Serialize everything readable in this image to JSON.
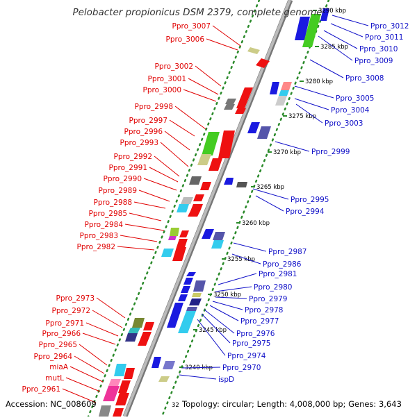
{
  "title": "Pelobacter propionicus DSM 2379, complete genome",
  "footer": {
    "accession": "Accession: NC_008609",
    "cut_kbp": "32",
    "summary": "Topology: circular; Length: 4,008,000 bp; Genes: 3,643"
  },
  "colors": {
    "forward": "#1010c8",
    "reverse": "#e00000",
    "backbone": "#999999",
    "tick_dots": "#2a8a2a"
  },
  "kbp_ticks": [
    "3290 kbp",
    "3285 kbp",
    "3280 kbp",
    "3275 kbp",
    "3270 kbp",
    "3265 kbp",
    "3260 kbp",
    "3255 kbp",
    "3250 kbp",
    "3245 kbp",
    "3240 kbp"
  ],
  "left_labels": [
    "Ppro_3007",
    "Ppro_3006",
    "Ppro_3002",
    "Ppro_3001",
    "Ppro_3000",
    "Ppro_2998",
    "Ppro_2997",
    "Ppro_2996",
    "Ppro_2993",
    "Ppro_2992",
    "Ppro_2991",
    "Ppro_2990",
    "Ppro_2989",
    "Ppro_2988",
    "Ppro_2985",
    "Ppro_2984",
    "Ppro_2983",
    "Ppro_2982",
    "Ppro_2973",
    "Ppro_2972",
    "Ppro_2971",
    "Ppro_2966",
    "Ppro_2965",
    "Ppro_2964",
    "miaA",
    "mutL",
    "Ppro_2961"
  ],
  "right_labels": [
    "Ppro_3012",
    "Ppro_3011",
    "Ppro_3010",
    "Ppro_3009",
    "Ppro_3008",
    "Ppro_3005",
    "Ppro_3004",
    "Ppro_3003",
    "Ppro_2999",
    "Ppro_2995",
    "Ppro_2994",
    "Ppro_2987",
    "Ppro_2986",
    "Ppro_2981",
    "Ppro_2980",
    "Ppro_2979",
    "Ppro_2978",
    "Ppro_2977",
    "Ppro_2976",
    "Ppro_2975",
    "Ppro_2974",
    "Ppro_2970",
    "ispD"
  ]
}
